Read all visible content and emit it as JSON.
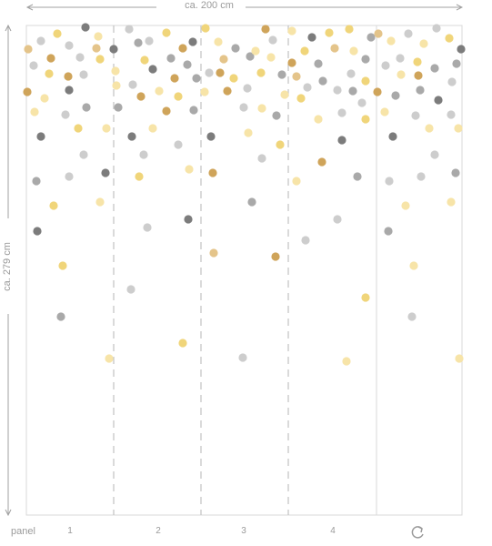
{
  "dimensions": {
    "width_label": "ca. 200 cm",
    "height_label": "ca. 279 cm"
  },
  "panels": {
    "caption": "panel",
    "numbers": [
      "1",
      "2",
      "3",
      "4"
    ],
    "repeat_icon": "refresh-icon"
  },
  "colors": {
    "gold": "#cfa45a",
    "yellow": "#f0d57a",
    "pale_yellow": "#f7e4a8",
    "light_gray": "#cdcdcd",
    "gray": "#a9a9a9",
    "dark_gray": "#7c7c7c",
    "tan": "#e4c48a",
    "line": "#d6d6d6"
  }
}
